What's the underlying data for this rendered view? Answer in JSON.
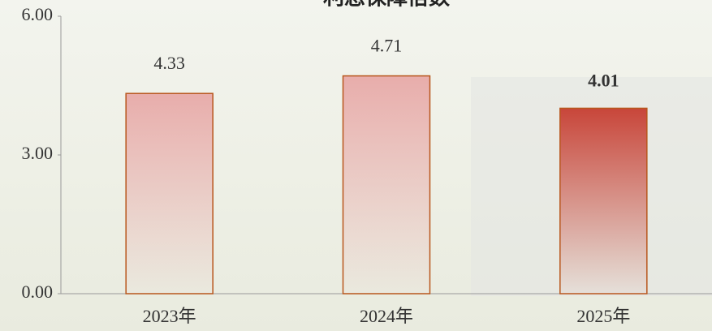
{
  "chart_data": {
    "type": "bar",
    "title": "利息保障倍数",
    "categories": [
      "2023年",
      "2024年",
      "2025年"
    ],
    "values": [
      4.33,
      4.71,
      4.01
    ],
    "colors": [
      "#e8adab",
      "#e8adab",
      "#c8463a"
    ],
    "edge_color": "#b8561c",
    "ylim": [
      0,
      6
    ],
    "yticks": [
      {
        "value": 0,
        "label": "0.00"
      },
      {
        "value": 3,
        "label": "3.00"
      },
      {
        "value": 6,
        "label": "6.00"
      }
    ]
  }
}
